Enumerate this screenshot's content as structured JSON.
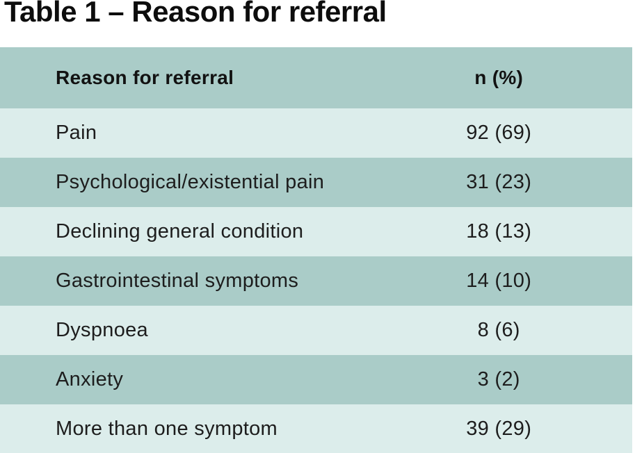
{
  "page": {
    "title": "Table 1 – Reason for referral"
  },
  "colors": {
    "page_bg": "#ffffff",
    "title_color": "#0d0d0d",
    "text_color": "#1d1d1d",
    "header_bg": "#aaccc8",
    "row_alt_bg": "#aaccc8",
    "row_bg": "#dcedeb"
  },
  "table": {
    "columns": [
      {
        "label": "Reason for referral"
      },
      {
        "label": "n (%)"
      }
    ],
    "rows": [
      {
        "reason": "Pain",
        "value": "92 (69)"
      },
      {
        "reason": "Psychological/existential pain",
        "value": "31 (23)"
      },
      {
        "reason": "Declining general condition",
        "value": "18 (13)"
      },
      {
        "reason": "Gastrointestinal symptoms",
        "value": "14 (10)"
      },
      {
        "reason": "Dyspnoea",
        "value": "8 (6)"
      },
      {
        "reason": "Anxiety",
        "value": "3 (2)"
      },
      {
        "reason": "More than one symptom",
        "value": "39 (29)"
      }
    ]
  },
  "chart_data": {
    "type": "table",
    "title": "Table 1 – Reason for referral",
    "columns": [
      "Reason for referral",
      "n (%)"
    ],
    "rows": [
      [
        "Pain",
        "92 (69)"
      ],
      [
        "Psychological/existential pain",
        "31 (23)"
      ],
      [
        "Declining general condition",
        "18 (13)"
      ],
      [
        "Gastrointestinal symptoms",
        "14 (10)"
      ],
      [
        "Dyspnoea",
        "8 (6)"
      ],
      [
        "Anxiety",
        "3 (2)"
      ],
      [
        "More than one symptom",
        "39 (29)"
      ]
    ],
    "categories": [
      "Pain",
      "Psychological/existential pain",
      "Declining general condition",
      "Gastrointestinal symptoms",
      "Dyspnoea",
      "Anxiety",
      "More than one symptom"
    ],
    "n_values": [
      92,
      31,
      18,
      14,
      8,
      3,
      39
    ],
    "percent_values": [
      69,
      23,
      13,
      10,
      6,
      2,
      29
    ]
  }
}
